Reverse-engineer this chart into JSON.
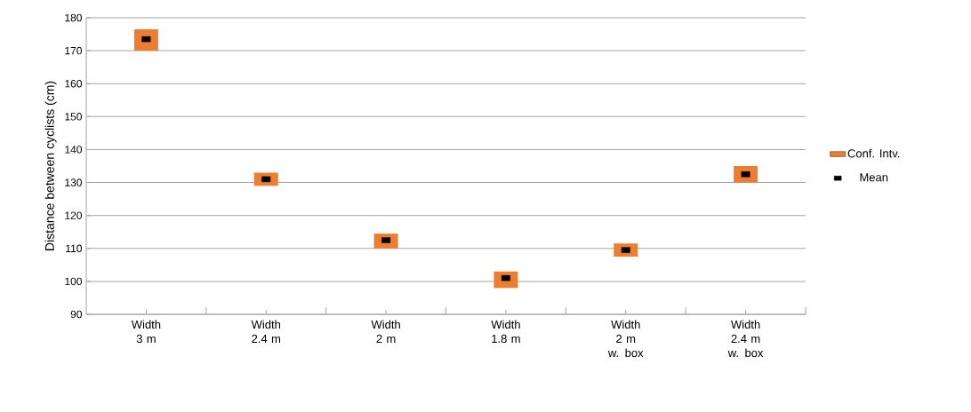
{
  "chart_data": {
    "type": "bar",
    "ylabel": "Distance between cyclists (cm)",
    "categories": [
      "Width 3 m",
      "Width 2.4 m",
      "Width 2 m",
      "Width 1.8 m",
      "Width 2 m w. box",
      "Width 2.4 m w. box"
    ],
    "series": [
      {
        "name": "Conf. Intv.",
        "color": "#ed7d31",
        "base": [
          170,
          129,
          110,
          98,
          107.5,
          130
        ],
        "values": [
          6.5,
          4,
          4.5,
          5,
          4,
          5
        ]
      },
      {
        "name": "Mean",
        "type": "scatter",
        "marker": "square",
        "color": "#000000",
        "values": [
          173.5,
          131,
          112.5,
          101,
          109.5,
          132.5
        ]
      }
    ],
    "ylim": [
      90,
      180
    ],
    "yticks": [
      90,
      100,
      110,
      120,
      130,
      140,
      150,
      160,
      170,
      180
    ],
    "grid": "y",
    "legend": "right"
  }
}
